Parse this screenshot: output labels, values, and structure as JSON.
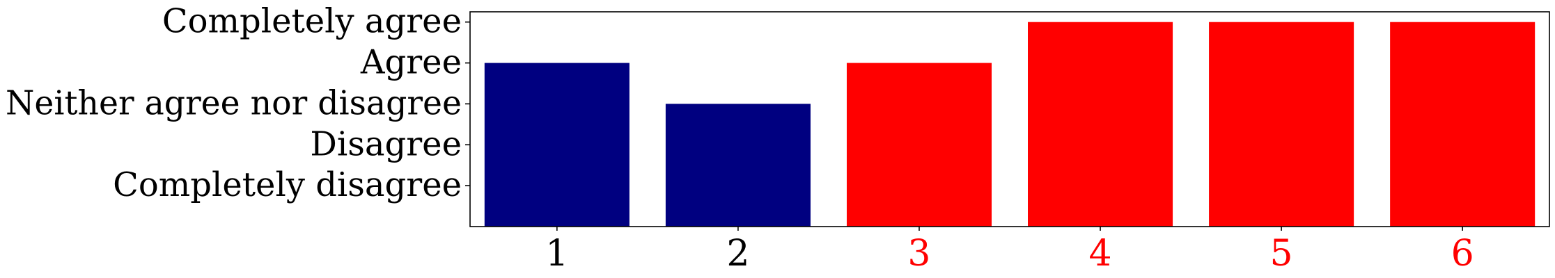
{
  "chart_data": {
    "type": "bar",
    "categories": [
      "1",
      "2",
      "3",
      "4",
      "5",
      "6"
    ],
    "values": [
      4,
      3,
      4,
      5,
      5,
      5
    ],
    "y_tick_labels": [
      {
        "value": 1,
        "label": "Completely disagree"
      },
      {
        "value": 2,
        "label": "Disagree"
      },
      {
        "value": 3,
        "label": "Neither agree nor disagree"
      },
      {
        "value": 4,
        "label": "Agree"
      },
      {
        "value": 5,
        "label": "Completely agree"
      }
    ],
    "ylim": [
      0,
      5.25
    ],
    "bar_colors": [
      "#000080",
      "#000080",
      "#ff0000",
      "#ff0000",
      "#ff0000",
      "#ff0000"
    ],
    "x_tick_label_colors": [
      "#000000",
      "#000000",
      "#ff0000",
      "#ff0000",
      "#ff0000",
      "#ff0000"
    ],
    "title": "",
    "xlabel": "",
    "ylabel": "",
    "grid": false,
    "legend": "none"
  }
}
